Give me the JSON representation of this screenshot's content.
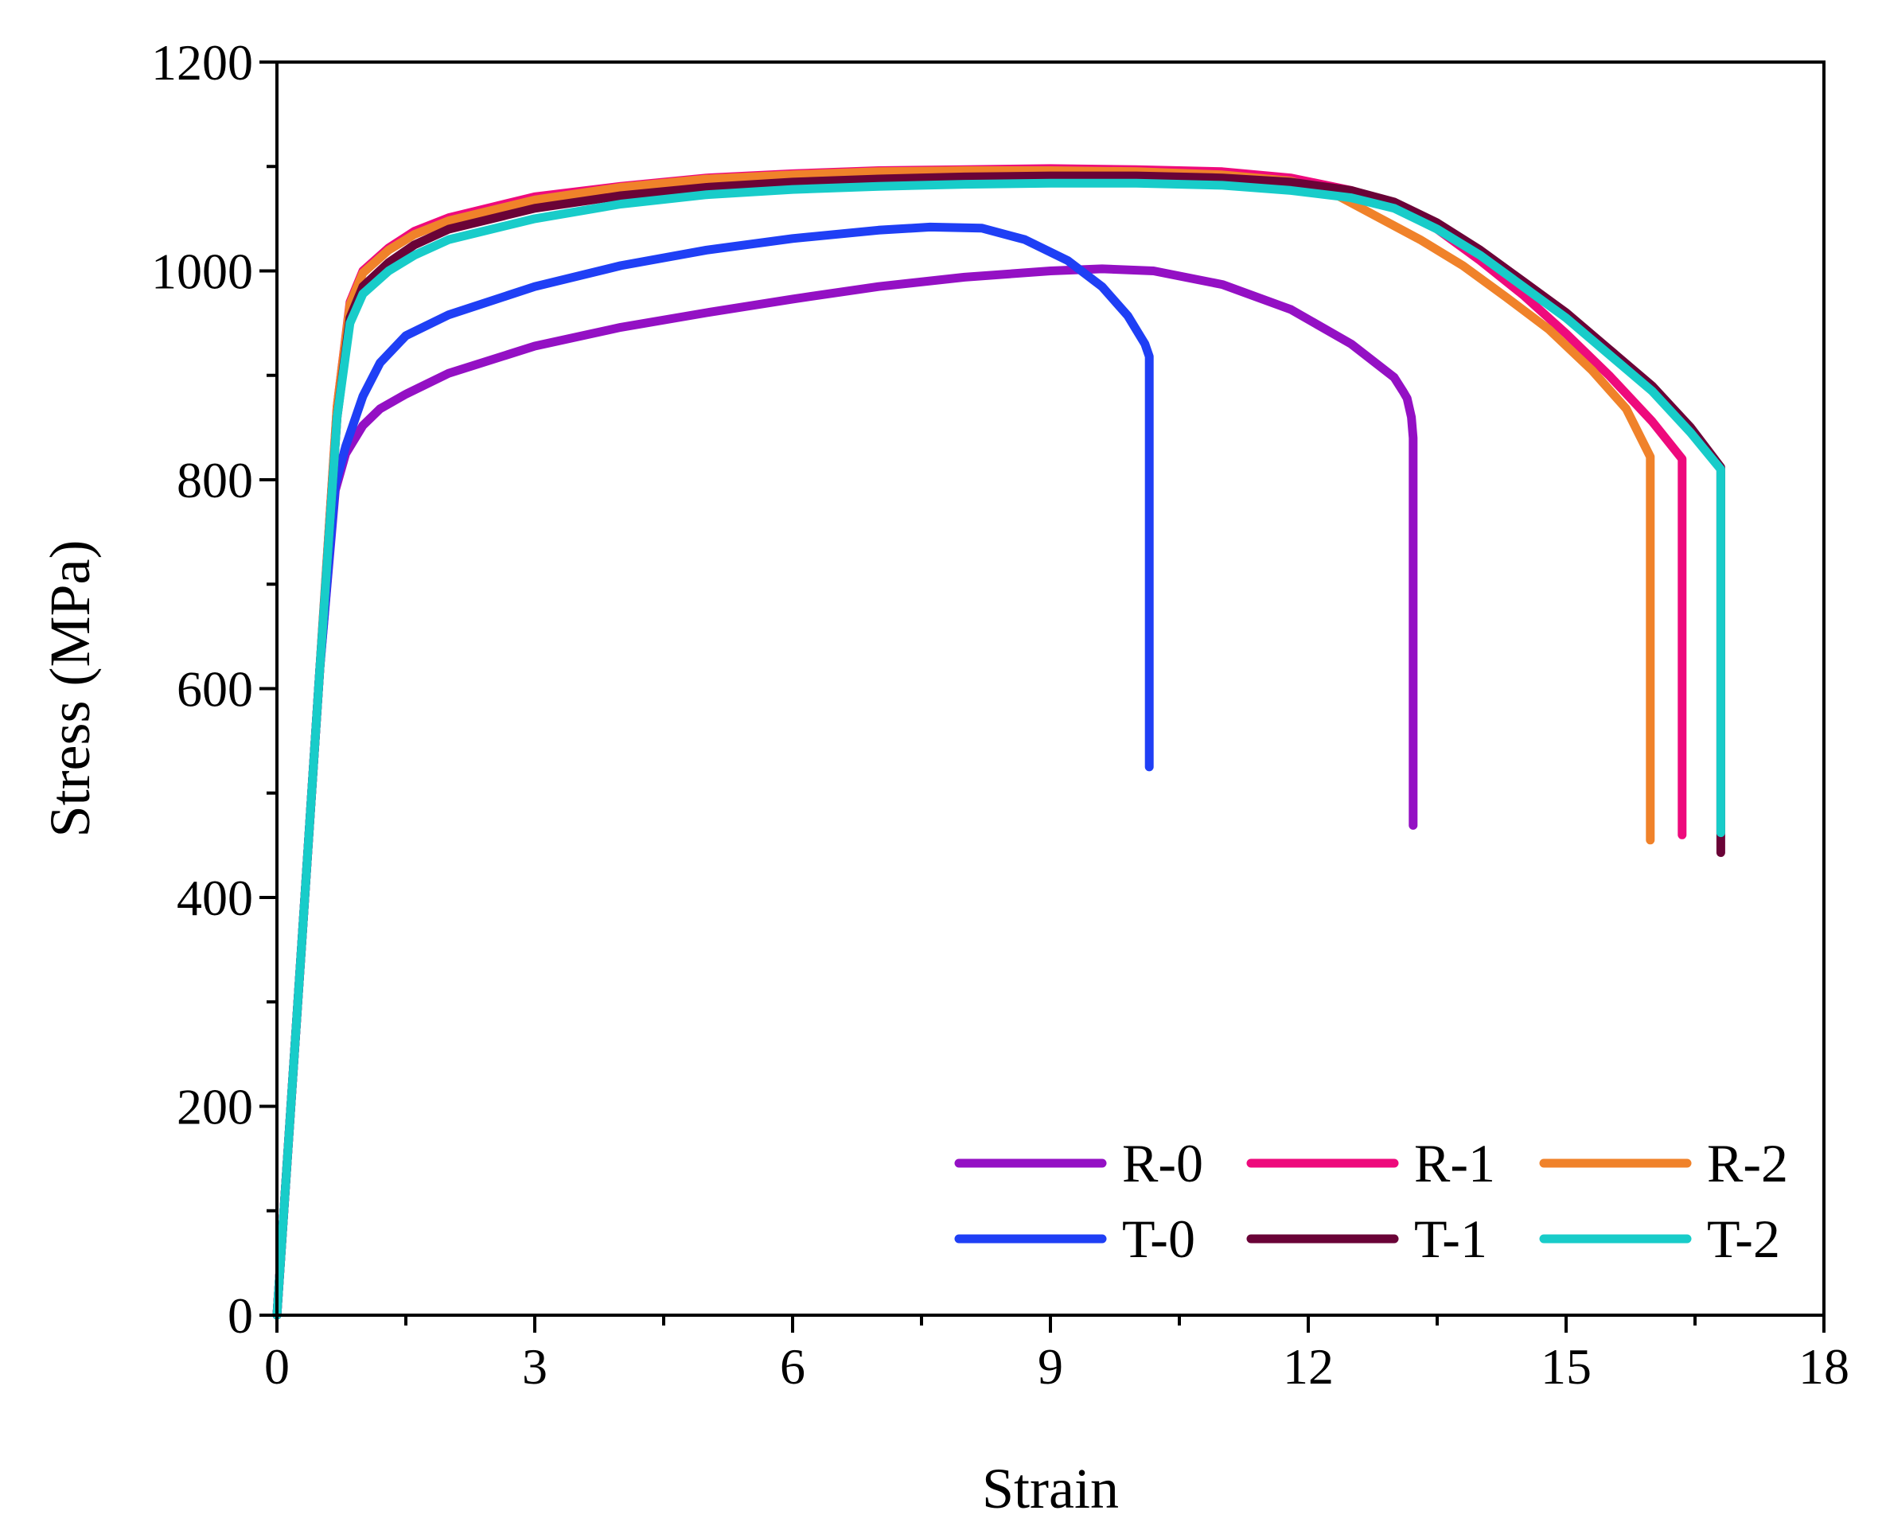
{
  "chart_data": {
    "type": "line",
    "title": "",
    "xlabel": "Strain",
    "ylabel": "Stress (MPa)",
    "xlim": [
      0,
      18
    ],
    "ylim": [
      0,
      1200
    ],
    "xticks": [
      0,
      3,
      6,
      9,
      12,
      15,
      18
    ],
    "yticks": [
      0,
      200,
      400,
      600,
      800,
      1000,
      1200
    ],
    "xtick_labels": [
      "0",
      "3",
      "6",
      "9",
      "12",
      "15",
      "18"
    ],
    "ytick_labels": [
      "0",
      "200",
      "400",
      "600",
      "800",
      "1000",
      "1200"
    ],
    "grid": false,
    "legend_position": "bottom-right",
    "series": [
      {
        "name": "R-0",
        "color": "#9410C4",
        "points": [
          [
            0,
            0
          ],
          [
            0.3,
            370
          ],
          [
            0.5,
            620
          ],
          [
            0.68,
            790
          ],
          [
            0.8,
            825
          ],
          [
            1.0,
            852
          ],
          [
            1.2,
            868
          ],
          [
            1.5,
            882
          ],
          [
            2,
            902
          ],
          [
            3,
            928
          ],
          [
            4,
            946
          ],
          [
            5,
            960
          ],
          [
            6,
            973
          ],
          [
            7,
            985
          ],
          [
            8,
            994
          ],
          [
            9,
            1000
          ],
          [
            9.6,
            1002
          ],
          [
            10.2,
            1000
          ],
          [
            11,
            987
          ],
          [
            11.8,
            963
          ],
          [
            12.5,
            930
          ],
          [
            13.0,
            898
          ],
          [
            13.1,
            885
          ],
          [
            13.15,
            878
          ],
          [
            13.2,
            860
          ],
          [
            13.22,
            840
          ],
          [
            13.22,
            700
          ],
          [
            13.22,
            469
          ]
        ]
      },
      {
        "name": "R-1",
        "color": "#EE0A7C",
        "points": [
          [
            0,
            0
          ],
          [
            0.3,
            370
          ],
          [
            0.5,
            620
          ],
          [
            0.7,
            870
          ],
          [
            0.85,
            970
          ],
          [
            1.0,
            1000
          ],
          [
            1.3,
            1022
          ],
          [
            1.6,
            1038
          ],
          [
            2,
            1051
          ],
          [
            3,
            1071
          ],
          [
            4,
            1081
          ],
          [
            5,
            1089
          ],
          [
            6,
            1093
          ],
          [
            7,
            1096
          ],
          [
            8,
            1097
          ],
          [
            9,
            1098
          ],
          [
            10,
            1097
          ],
          [
            11,
            1095
          ],
          [
            11.8,
            1089
          ],
          [
            12.5,
            1077
          ],
          [
            13,
            1064
          ],
          [
            13.5,
            1040
          ],
          [
            14,
            1010
          ],
          [
            14.5,
            977
          ],
          [
            15,
            940
          ],
          [
            15.5,
            900
          ],
          [
            16,
            856
          ],
          [
            16.35,
            820
          ],
          [
            16.35,
            600
          ],
          [
            16.35,
            460
          ]
        ]
      },
      {
        "name": "R-2",
        "color": "#F0822A",
        "points": [
          [
            0,
            0
          ],
          [
            0.3,
            370
          ],
          [
            0.5,
            620
          ],
          [
            0.7,
            870
          ],
          [
            0.85,
            968
          ],
          [
            1.0,
            998
          ],
          [
            1.3,
            1020
          ],
          [
            1.6,
            1035
          ],
          [
            2,
            1048
          ],
          [
            3,
            1068
          ],
          [
            4,
            1080
          ],
          [
            5,
            1088
          ],
          [
            6,
            1092
          ],
          [
            7,
            1095
          ],
          [
            8,
            1096
          ],
          [
            9,
            1096
          ],
          [
            10,
            1095
          ],
          [
            11,
            1092
          ],
          [
            11.8,
            1086
          ],
          [
            12.3,
            1074
          ],
          [
            12.8,
            1052
          ],
          [
            13.3,
            1030
          ],
          [
            13.8,
            1005
          ],
          [
            14.3,
            975
          ],
          [
            14.8,
            944
          ],
          [
            15.3,
            905
          ],
          [
            15.7,
            868
          ],
          [
            15.98,
            822
          ],
          [
            15.98,
            600
          ],
          [
            15.98,
            455
          ]
        ]
      },
      {
        "name": "T-0",
        "color": "#1F3FF5",
        "points": [
          [
            0,
            0
          ],
          [
            0.3,
            370
          ],
          [
            0.5,
            620
          ],
          [
            0.68,
            795
          ],
          [
            0.8,
            832
          ],
          [
            1.0,
            880
          ],
          [
            1.2,
            912
          ],
          [
            1.5,
            938
          ],
          [
            2,
            958
          ],
          [
            3,
            985
          ],
          [
            4,
            1005
          ],
          [
            5,
            1020
          ],
          [
            6,
            1031
          ],
          [
            7,
            1039
          ],
          [
            7.6,
            1042
          ],
          [
            8.2,
            1041
          ],
          [
            8.7,
            1030
          ],
          [
            9.2,
            1010
          ],
          [
            9.6,
            985
          ],
          [
            9.9,
            957
          ],
          [
            10.1,
            930
          ],
          [
            10.15,
            918
          ],
          [
            10.15,
            700
          ],
          [
            10.15,
            525
          ]
        ]
      },
      {
        "name": "T-1",
        "color": "#6A0337",
        "points": [
          [
            0,
            0
          ],
          [
            0.3,
            370
          ],
          [
            0.5,
            620
          ],
          [
            0.7,
            860
          ],
          [
            0.85,
            955
          ],
          [
            1.0,
            985
          ],
          [
            1.3,
            1008
          ],
          [
            1.6,
            1025
          ],
          [
            2,
            1040
          ],
          [
            3,
            1060
          ],
          [
            4,
            1072
          ],
          [
            5,
            1080
          ],
          [
            6,
            1085
          ],
          [
            7,
            1088
          ],
          [
            8,
            1090
          ],
          [
            9,
            1091
          ],
          [
            10,
            1091
          ],
          [
            11,
            1089
          ],
          [
            11.8,
            1085
          ],
          [
            12.5,
            1077
          ],
          [
            13,
            1066
          ],
          [
            13.5,
            1046
          ],
          [
            14,
            1020
          ],
          [
            14.5,
            990
          ],
          [
            15,
            960
          ],
          [
            15.5,
            925
          ],
          [
            16,
            890
          ],
          [
            16.45,
            850
          ],
          [
            16.8,
            812
          ],
          [
            16.8,
            600
          ],
          [
            16.8,
            443
          ]
        ]
      },
      {
        "name": "T-2",
        "color": "#18CCC9",
        "points": [
          [
            0,
            0
          ],
          [
            0.3,
            370
          ],
          [
            0.5,
            620
          ],
          [
            0.7,
            860
          ],
          [
            0.85,
            950
          ],
          [
            1.0,
            978
          ],
          [
            1.3,
            1000
          ],
          [
            1.6,
            1015
          ],
          [
            2,
            1030
          ],
          [
            3,
            1050
          ],
          [
            4,
            1064
          ],
          [
            5,
            1073
          ],
          [
            6,
            1078
          ],
          [
            7,
            1081
          ],
          [
            8,
            1083
          ],
          [
            9,
            1084
          ],
          [
            10,
            1084
          ],
          [
            11,
            1082
          ],
          [
            11.8,
            1077
          ],
          [
            12.5,
            1070
          ],
          [
            13,
            1060
          ],
          [
            13.5,
            1040
          ],
          [
            14,
            1015
          ],
          [
            14.5,
            985
          ],
          [
            15,
            955
          ],
          [
            15.5,
            920
          ],
          [
            16,
            885
          ],
          [
            16.45,
            845
          ],
          [
            16.8,
            810
          ],
          [
            16.8,
            600
          ],
          [
            16.8,
            462
          ]
        ]
      }
    ]
  }
}
